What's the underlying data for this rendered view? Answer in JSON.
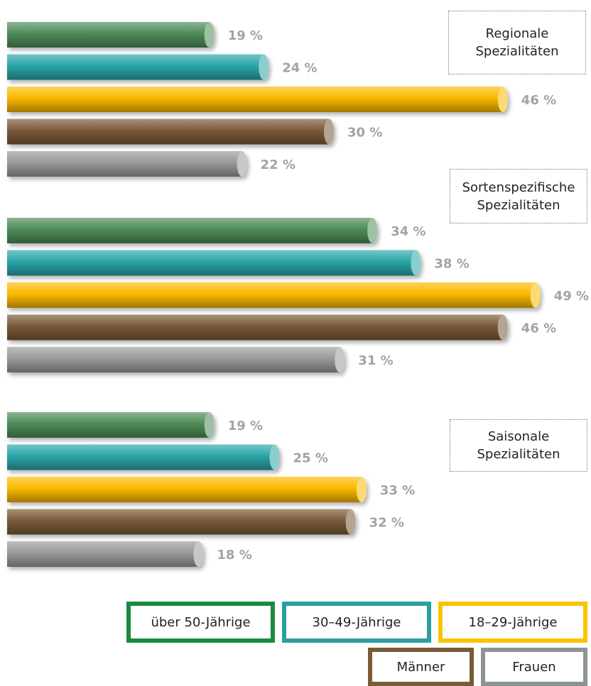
{
  "chart_data": {
    "type": "bar",
    "orientation": "horizontal",
    "categories": [
      "Regionale Spezialitäten",
      "Sortenspezifische Spezialitäten",
      "Saisonale Spezialitäten"
    ],
    "series": [
      {
        "name": "über 50-Jährige",
        "color": "#4e8c57",
        "values": [
          19,
          34,
          19
        ],
        "value_labels": [
          "19 %",
          "34 %",
          "19 %"
        ]
      },
      {
        "name": "30–49-Jährige",
        "color": "#2aa6a9",
        "values": [
          24,
          38,
          25
        ],
        "value_labels": [
          "24 %",
          "38 %",
          "25 %"
        ]
      },
      {
        "name": "18–29-Jährige",
        "color": "#fbb900",
        "values": [
          46,
          49,
          33
        ],
        "value_labels": [
          "46 %",
          "49 %",
          "33 %"
        ]
      },
      {
        "name": "Männer",
        "color": "#7a5a38",
        "values": [
          30,
          46,
          32
        ],
        "value_labels": [
          "30 %",
          "46 %",
          "32 %"
        ]
      },
      {
        "name": "Frauen",
        "color": "#9a9a9a",
        "values": [
          22,
          31,
          18
        ],
        "value_labels": [
          "22 %",
          "31 %",
          "18 %"
        ]
      }
    ]
  }
}
